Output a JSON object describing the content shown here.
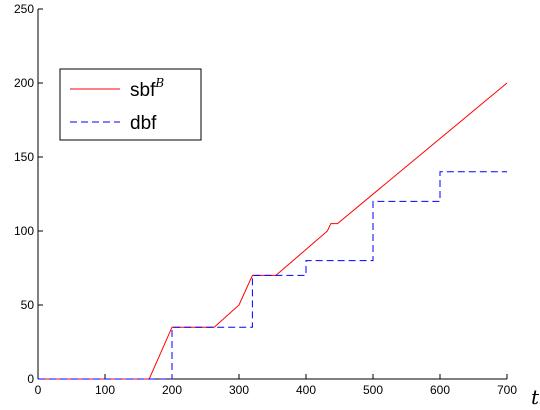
{
  "chart_data": {
    "type": "line",
    "xlabel": "t",
    "ylabel": "",
    "xlim": [
      0,
      700
    ],
    "ylim": [
      0,
      250
    ],
    "x_ticks": [
      0,
      100,
      200,
      300,
      400,
      500,
      600,
      700
    ],
    "y_ticks": [
      0,
      50,
      100,
      150,
      200,
      250
    ],
    "grid": false,
    "legend_position": "top-left",
    "series": [
      {
        "name": "sbf",
        "name_superscript": "B",
        "style": "solid",
        "color": "#ff0000",
        "points": [
          [
            0,
            0
          ],
          [
            166,
            0
          ],
          [
            200,
            35
          ],
          [
            263,
            35
          ],
          [
            300,
            50
          ],
          [
            320,
            70
          ],
          [
            355,
            70
          ],
          [
            432,
            100
          ],
          [
            437,
            105
          ],
          [
            447,
            105
          ],
          [
            700,
            200
          ]
        ]
      },
      {
        "name": "dbf",
        "style": "dashed",
        "color": "#0000ff",
        "points": [
          [
            0,
            0
          ],
          [
            200,
            0
          ],
          [
            200,
            35
          ],
          [
            320,
            35
          ],
          [
            320,
            70
          ],
          [
            400,
            70
          ],
          [
            400,
            80
          ],
          [
            500,
            80
          ],
          [
            500,
            120
          ],
          [
            600,
            120
          ],
          [
            600,
            140
          ],
          [
            700,
            140
          ]
        ]
      }
    ]
  }
}
